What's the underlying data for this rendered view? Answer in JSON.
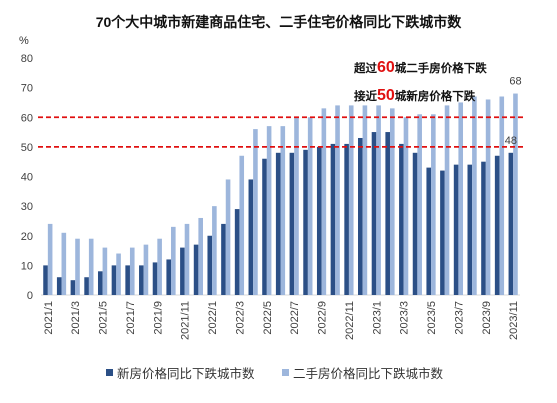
{
  "chart_data": {
    "type": "bar",
    "title": "70个大中城市新建商品住宅、二手住宅价格同比下跌城市数",
    "yunit": "%",
    "ylim": [
      0,
      80
    ],
    "yticks": [
      0,
      10,
      20,
      30,
      40,
      50,
      60,
      70,
      80
    ],
    "categories": [
      "2021/1",
      "2021/2",
      "2021/3",
      "2021/4",
      "2021/5",
      "2021/6",
      "2021/7",
      "2021/8",
      "2021/9",
      "2021/10",
      "2021/11",
      "2021/12",
      "2022/1",
      "2022/2",
      "2022/3",
      "2022/4",
      "2022/5",
      "2022/6",
      "2022/7",
      "2022/8",
      "2022/9",
      "2022/10",
      "2022/11",
      "2022/12",
      "2023/1",
      "2023/2",
      "2023/3",
      "2023/4",
      "2023/5",
      "2023/6",
      "2023/7",
      "2023/8",
      "2023/9",
      "2023/10",
      "2023/11"
    ],
    "xticks": [
      "2021/1",
      "2021/3",
      "2021/5",
      "2021/7",
      "2021/9",
      "2021/11",
      "2022/1",
      "2022/3",
      "2022/5",
      "2022/7",
      "2022/9",
      "2022/11",
      "2023/1",
      "2023/3",
      "2023/5",
      "2023/7",
      "2023/9",
      "2023/11"
    ],
    "series": [
      {
        "name": "新房价格同比下跌城市数",
        "color": "#2b4f86",
        "values": [
          10,
          6,
          5,
          6,
          8,
          10,
          10,
          10,
          11,
          12,
          16,
          17,
          20,
          24,
          29,
          39,
          46,
          48,
          48,
          49,
          50,
          51,
          51,
          53,
          55,
          55,
          51,
          48,
          43,
          42,
          44,
          44,
          45,
          47,
          48
        ]
      },
      {
        "name": "二手房价格同比下跌城市数",
        "color": "#9db6dc",
        "values": [
          24,
          21,
          19,
          19,
          16,
          14,
          16,
          17,
          19,
          23,
          24,
          26,
          30,
          39,
          47,
          56,
          57,
          57,
          60,
          60,
          63,
          64,
          64,
          64,
          64,
          63,
          60,
          61,
          61,
          64,
          65,
          67,
          66,
          67,
          68
        ]
      }
    ],
    "data_labels": [
      {
        "series": 1,
        "category": "2023/11",
        "text": "68"
      },
      {
        "series": 0,
        "category": "2023/11",
        "text": "48"
      }
    ],
    "reference_lines": [
      {
        "y": 60,
        "color": "#e01010",
        "style": "dashed"
      },
      {
        "y": 50,
        "color": "#e01010",
        "style": "dashed"
      }
    ],
    "annotations": [
      {
        "prefix": "超过",
        "number": "60",
        "suffix": "城二手房价格下跌",
        "number_color": "#e01010"
      },
      {
        "prefix": "接近",
        "number": "50",
        "suffix": "城新房价格下跌",
        "number_color": "#e01010"
      }
    ],
    "grid": false,
    "legend": "bottom"
  }
}
